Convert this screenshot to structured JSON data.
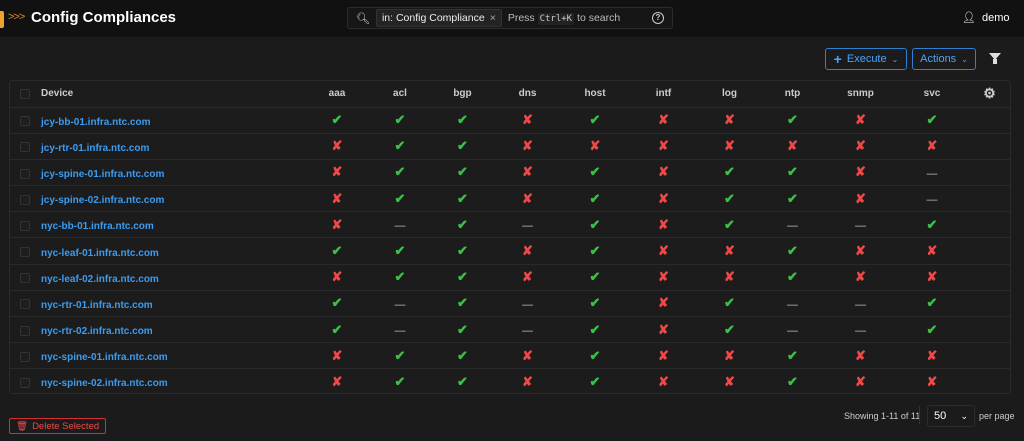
{
  "header": {
    "title": "Config Compliances",
    "search": {
      "chip": "in: Config Compliance",
      "placeholder_prefix": "Press",
      "shortcut": "Ctrl+K",
      "placeholder_suffix": "to search"
    },
    "user": "demo"
  },
  "toolbar": {
    "execute_label": "Execute",
    "actions_label": "Actions"
  },
  "table": {
    "columns": [
      "Device",
      "aaa",
      "acl",
      "bgp",
      "dns",
      "host",
      "intf",
      "log",
      "ntp",
      "snmp",
      "svc"
    ],
    "rows": [
      {
        "device": "jcy-bb-01.infra.ntc.com",
        "status": [
          "pass",
          "pass",
          "pass",
          "fail",
          "pass",
          "fail",
          "fail",
          "pass",
          "fail",
          "pass"
        ]
      },
      {
        "device": "jcy-rtr-01.infra.ntc.com",
        "status": [
          "fail",
          "pass",
          "pass",
          "fail",
          "fail",
          "fail",
          "fail",
          "fail",
          "fail",
          "fail"
        ]
      },
      {
        "device": "jcy-spine-01.infra.ntc.com",
        "status": [
          "fail",
          "pass",
          "pass",
          "fail",
          "pass",
          "fail",
          "pass",
          "pass",
          "fail",
          "none"
        ]
      },
      {
        "device": "jcy-spine-02.infra.ntc.com",
        "status": [
          "fail",
          "pass",
          "pass",
          "fail",
          "pass",
          "fail",
          "pass",
          "pass",
          "fail",
          "none"
        ]
      },
      {
        "device": "nyc-bb-01.infra.ntc.com",
        "status": [
          "fail",
          "none",
          "pass",
          "none",
          "pass",
          "fail",
          "pass",
          "none",
          "none",
          "pass"
        ]
      },
      {
        "device": "nyc-leaf-01.infra.ntc.com",
        "status": [
          "pass",
          "pass",
          "pass",
          "fail",
          "pass",
          "fail",
          "fail",
          "pass",
          "fail",
          "fail"
        ]
      },
      {
        "device": "nyc-leaf-02.infra.ntc.com",
        "status": [
          "fail",
          "pass",
          "pass",
          "fail",
          "pass",
          "fail",
          "fail",
          "pass",
          "fail",
          "fail"
        ]
      },
      {
        "device": "nyc-rtr-01.infra.ntc.com",
        "status": [
          "pass",
          "none",
          "pass",
          "none",
          "pass",
          "fail",
          "pass",
          "none",
          "none",
          "pass"
        ]
      },
      {
        "device": "nyc-rtr-02.infra.ntc.com",
        "status": [
          "pass",
          "none",
          "pass",
          "none",
          "pass",
          "fail",
          "pass",
          "none",
          "none",
          "pass"
        ]
      },
      {
        "device": "nyc-spine-01.infra.ntc.com",
        "status": [
          "fail",
          "pass",
          "pass",
          "fail",
          "pass",
          "fail",
          "fail",
          "pass",
          "fail",
          "fail"
        ]
      },
      {
        "device": "nyc-spine-02.infra.ntc.com",
        "status": [
          "fail",
          "pass",
          "pass",
          "fail",
          "pass",
          "fail",
          "fail",
          "pass",
          "fail",
          "fail"
        ]
      }
    ]
  },
  "footer": {
    "delete_label": "Delete Selected",
    "showing": "Showing 1-11 of 11",
    "per_page_value": "50",
    "per_page_label": "per page"
  },
  "colors": {
    "pass": "#3cc04a",
    "fail": "#f04848",
    "link": "#3b9cf0",
    "accent": "#f0a030"
  }
}
